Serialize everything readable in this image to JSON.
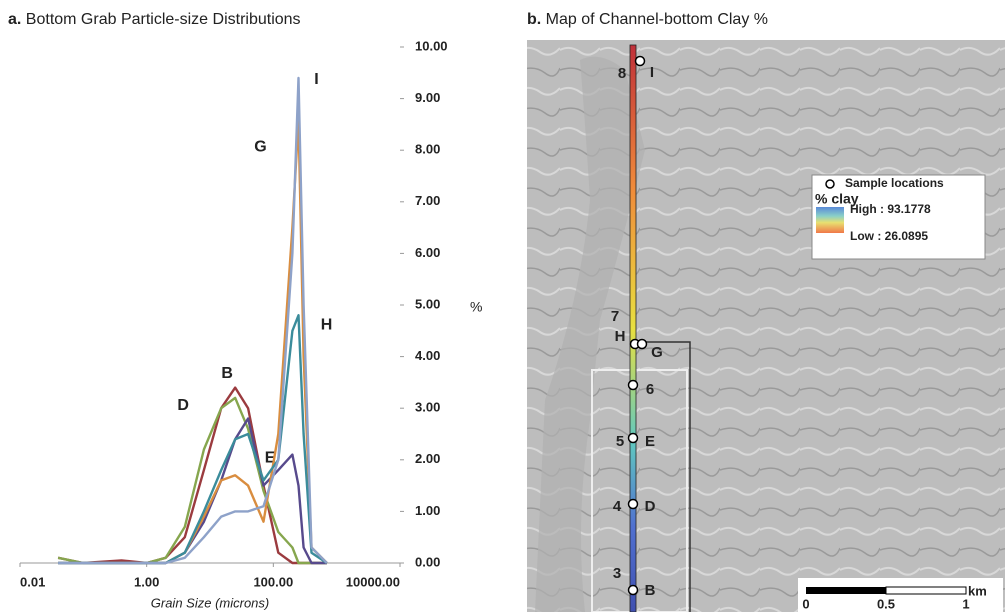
{
  "chart_data": {
    "type": "line",
    "panel_label": "a.",
    "title": "Bottom Grab Particle-size Distributions",
    "x_label": "Grain Size (microns)",
    "y_label": "%",
    "log_x": true,
    "xlim": [
      0.01,
      10000
    ],
    "xticks": [
      0.01,
      {
        "value": 1,
        "label": "1.00"
      },
      {
        "value": 100,
        "label": "100.00"
      },
      {
        "value": 10000,
        "label": "10000.00"
      }
    ],
    "ylim": [
      0,
      10
    ],
    "yticks": [
      {
        "value": 0,
        "label": "0.00"
      },
      {
        "value": 1,
        "label": "1.00"
      },
      {
        "value": 2,
        "label": "2.00"
      },
      {
        "value": 3,
        "label": "3.00"
      },
      {
        "value": 4,
        "label": "4.00"
      },
      {
        "value": 5,
        "label": "5.00"
      },
      {
        "value": 6,
        "label": "6.00"
      },
      {
        "value": 7,
        "label": "7.00"
      },
      {
        "value": 8,
        "label": "8.00"
      },
      {
        "value": 9,
        "label": "9.00"
      },
      {
        "value": 10,
        "label": "10.00"
      }
    ],
    "x": [
      0.04,
      0.1,
      0.4,
      1,
      2,
      4,
      8,
      15,
      25,
      40,
      70,
      120,
      200,
      250,
      300,
      400,
      700
    ],
    "series": [
      {
        "name": "B",
        "color": "#9b3b3f",
        "values": [
          0.1,
          0,
          0.05,
          0,
          0.1,
          0.5,
          1.8,
          3.0,
          3.4,
          3.0,
          1.5,
          0.2,
          0,
          0,
          0,
          0,
          0
        ]
      },
      {
        "name": "D",
        "color": "#86a64e",
        "values": [
          0.1,
          0,
          0,
          0,
          0.1,
          0.7,
          2.2,
          3.0,
          3.2,
          2.6,
          1.4,
          0.6,
          0.3,
          0,
          0,
          0,
          0
        ]
      },
      {
        "name": "E",
        "color": "#574a8c",
        "values": [
          0,
          0,
          0,
          0,
          0,
          0.2,
          0.8,
          1.6,
          2.4,
          2.8,
          1.5,
          1.8,
          2.1,
          1.5,
          0.3,
          0,
          0
        ]
      },
      {
        "name": "G",
        "color": "#d98d3f",
        "values": [
          0,
          0,
          0,
          0,
          0,
          0.2,
          0.9,
          1.6,
          1.7,
          1.5,
          0.8,
          2.5,
          6.5,
          8.6,
          4.0,
          0.3,
          0
        ]
      },
      {
        "name": "H",
        "color": "#3b8c9b",
        "values": [
          0,
          0,
          0,
          0,
          0,
          0.2,
          1.0,
          1.8,
          2.4,
          2.5,
          1.6,
          2.0,
          4.5,
          4.8,
          2.5,
          0.2,
          0
        ]
      },
      {
        "name": "I",
        "color": "#8ea2c9",
        "values": [
          0,
          0,
          0,
          0,
          0,
          0.1,
          0.5,
          0.9,
          1.0,
          1.0,
          1.1,
          2.0,
          6.0,
          9.4,
          5.0,
          0.3,
          0
        ]
      }
    ]
  },
  "map": {
    "panel_label": "b.",
    "title": "Map of Channel-bottom Clay %",
    "sites": [
      {
        "number": "8",
        "letter": "I"
      },
      {
        "number": "7",
        "letter": "H"
      },
      {
        "letter": "G"
      },
      {
        "number": "6"
      },
      {
        "number": "5",
        "letter": "E"
      },
      {
        "number": "4",
        "letter": "D"
      },
      {
        "number": "3",
        "letter": "B"
      }
    ],
    "legend": {
      "sample_label": "Sample locations",
      "field": "% clay",
      "high": "High : 93.1778",
      "low": "Low : 26.0895"
    },
    "scale": {
      "unit": "km",
      "labels": [
        "0",
        "0.5",
        "1"
      ]
    }
  }
}
